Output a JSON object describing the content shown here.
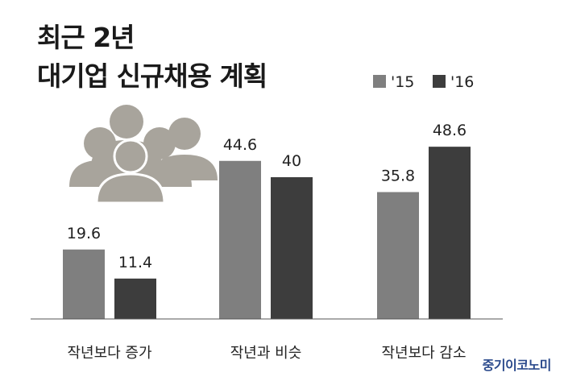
{
  "title": [
    "최근 2년",
    "대기업 신규채용 계획"
  ],
  "brand": "중기이코노미",
  "chart_data": {
    "type": "bar",
    "categories": [
      "작년보다 증가",
      "작년과 비슷",
      "작년보다 감소"
    ],
    "series": [
      {
        "name": "'15",
        "values": [
          19.6,
          44.6,
          35.8
        ],
        "color": "#7f7f7f"
      },
      {
        "name": "'16",
        "values": [
          11.4,
          40,
          48.6
        ],
        "color": "#3d3d3d"
      }
    ],
    "ylim": [
      0,
      50
    ],
    "grid": false,
    "legend": "top-right",
    "decoration": "people-group-icon"
  }
}
